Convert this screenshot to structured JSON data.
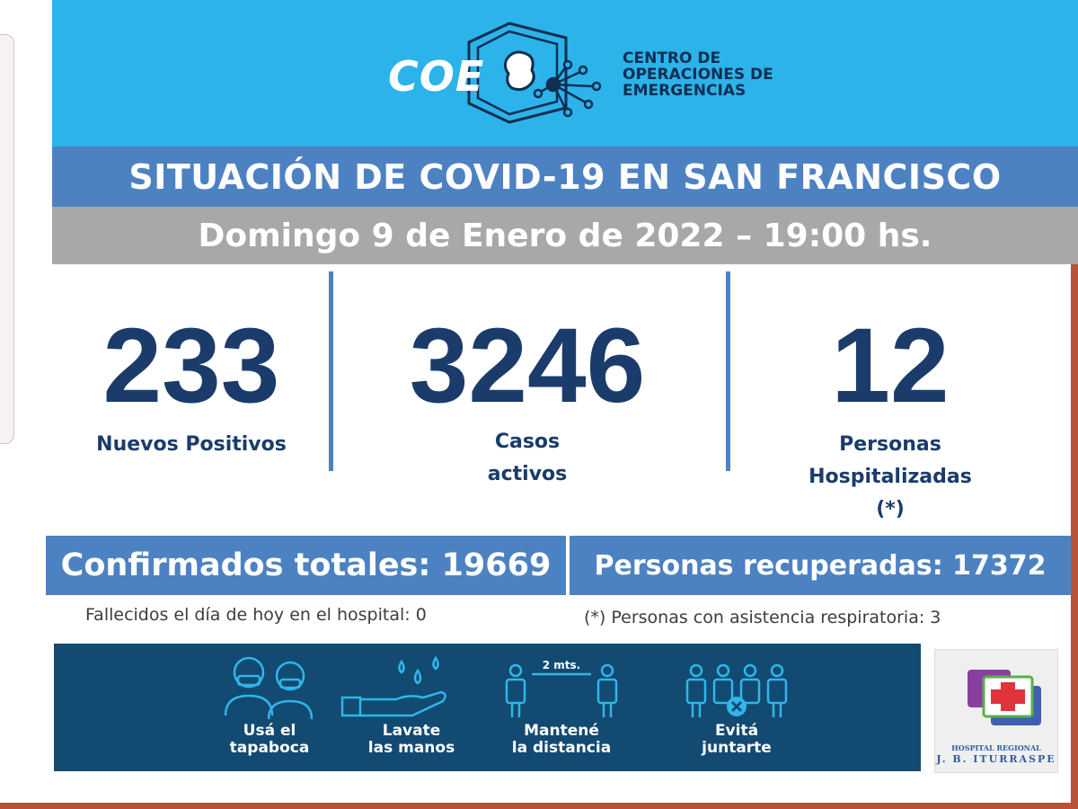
{
  "header": {
    "logo_word": "COE",
    "org_name_lines": [
      "CENTRO DE",
      "OPERACIONES DE",
      "EMERGENCIAS"
    ]
  },
  "title": "SITUACIÓN DE COVID-19 EN SAN FRANCISCO",
  "date": "Domingo 9 de Enero de 2022 – 19:00 hs.",
  "stats": [
    {
      "value": "233",
      "label_lines": [
        "Nuevos Positivos"
      ]
    },
    {
      "value": "3246",
      "label_lines": [
        "Casos",
        "activos"
      ]
    },
    {
      "value": "12",
      "label_lines": [
        "Personas",
        "Hospitalizadas",
        "(*)"
      ]
    }
  ],
  "totals": {
    "confirmed": "Confirmados totales: 19669",
    "recovered": "Personas recuperadas: 17372"
  },
  "notes": {
    "deaths": "Fallecidos el día de hoy en el hospital: 0",
    "respiratory": "(*) Personas con asistencia respiratoria: 3"
  },
  "prevention_tips": [
    {
      "icon": "people-mask-icon",
      "label_lines": [
        "Usá el",
        "tapaboca"
      ]
    },
    {
      "icon": "hand-wash-icon",
      "label_lines": [
        "Lavate",
        "las manos"
      ]
    },
    {
      "icon": "distance-icon",
      "distance_text": "2 mts.",
      "label_lines": [
        "Mantené",
        "la distancia"
      ]
    },
    {
      "icon": "crowd-icon",
      "label_lines": [
        "Evitá",
        "juntarte"
      ]
    }
  ],
  "hospital": {
    "name_lines": [
      "HOSPITAL REGIONAL",
      "J. B. ITURRASPE"
    ]
  },
  "colors": {
    "banner": "#2cb3ea",
    "title_bar": "#4d82c2",
    "date_bar": "#a8a8a8",
    "number_text": "#1b3c6b",
    "tips_strip": "#124a72"
  }
}
